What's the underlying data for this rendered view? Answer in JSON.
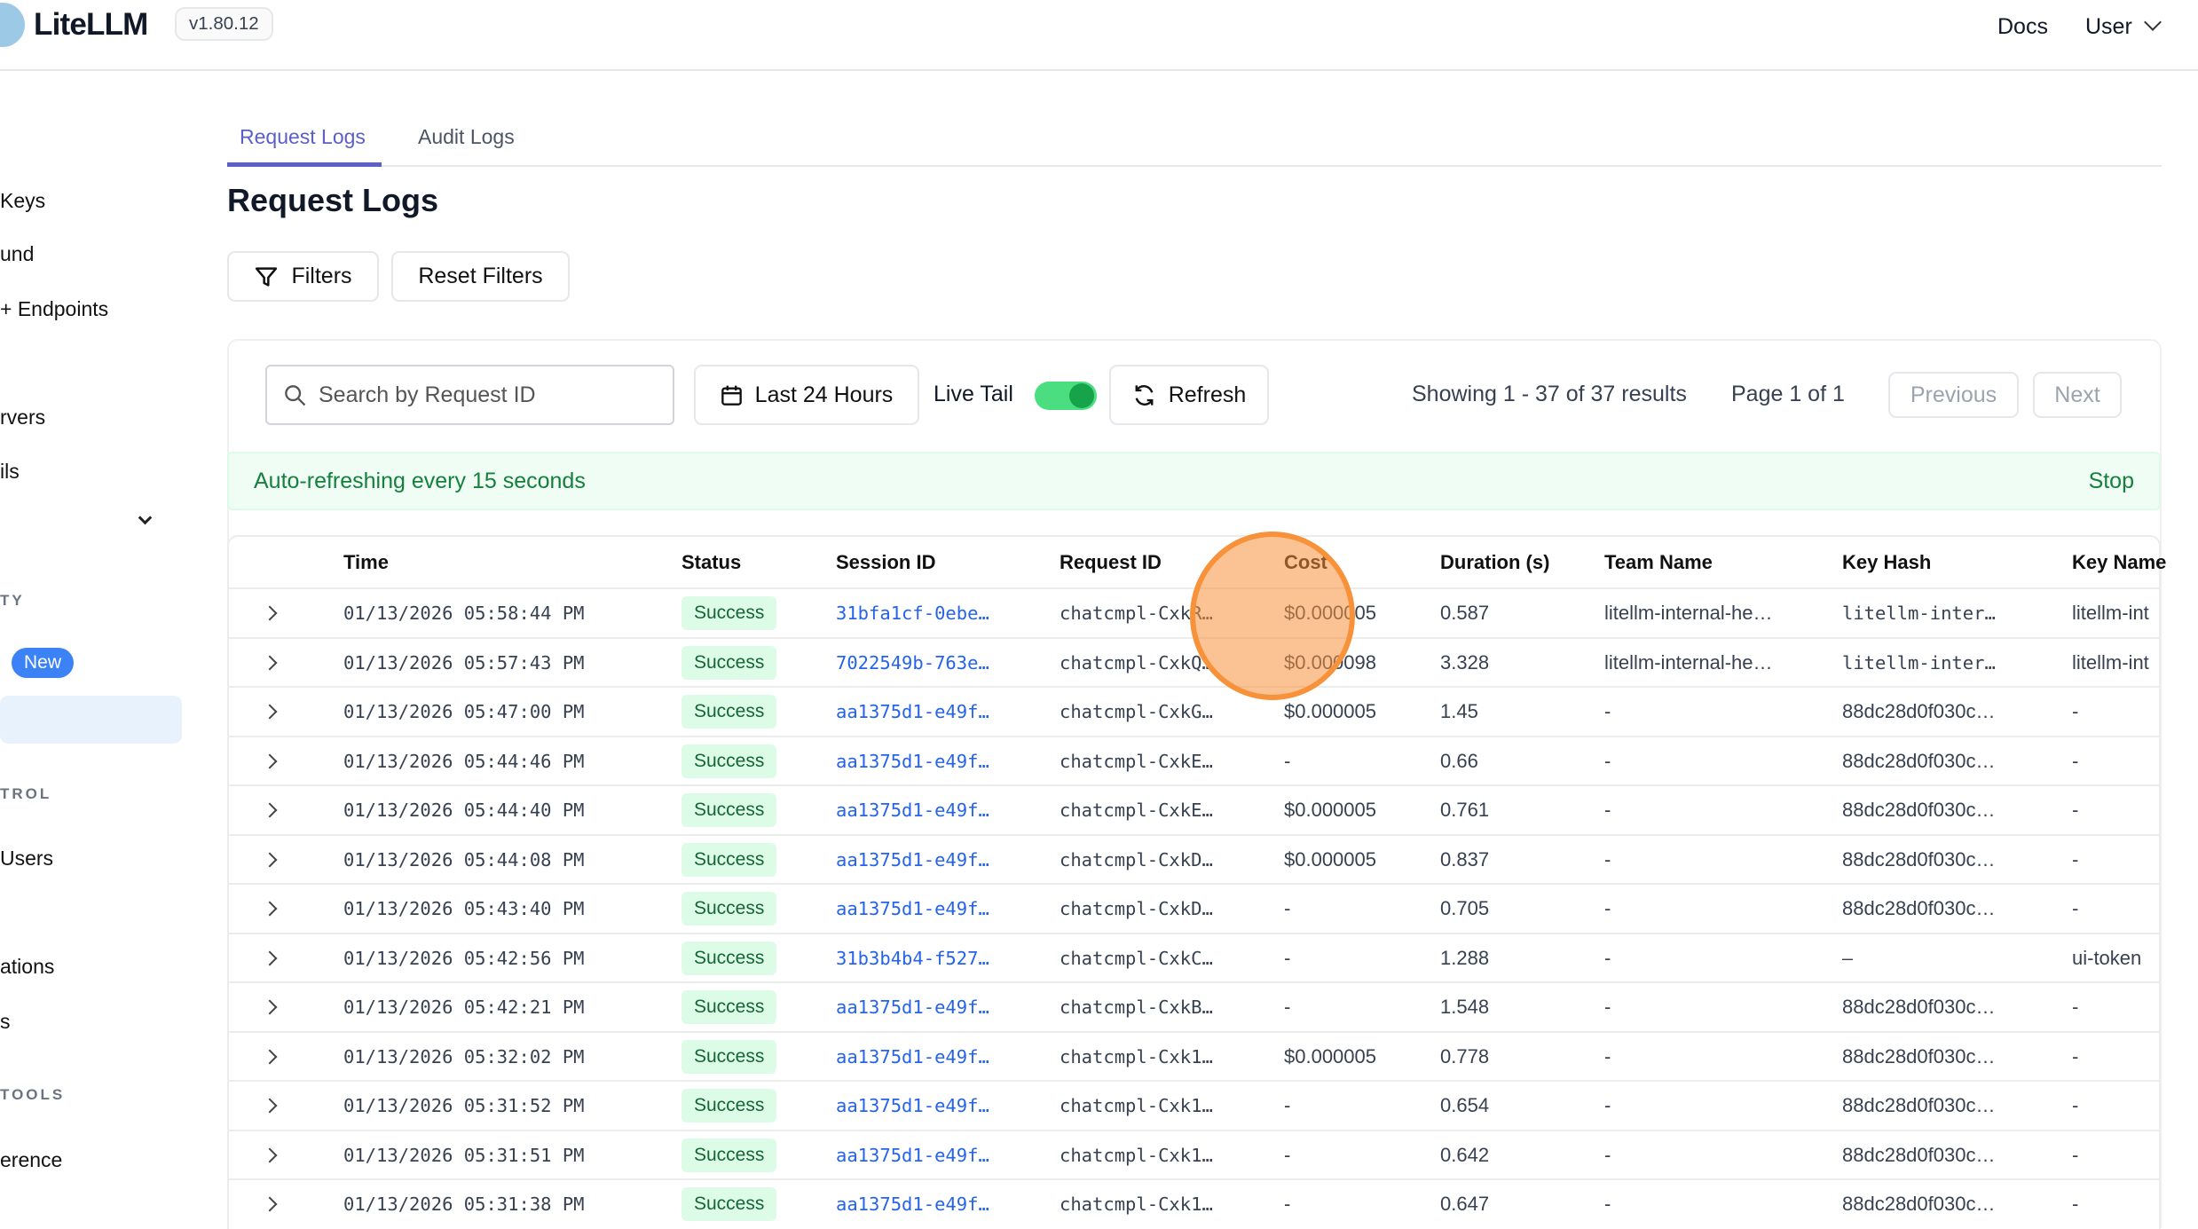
{
  "header": {
    "brand": "LiteLLM",
    "version": "v1.80.12",
    "docs": "Docs",
    "user": "User"
  },
  "sidebar": {
    "items": [
      {
        "label": "Keys"
      },
      {
        "label": "und"
      },
      {
        "label": "+ Endpoints"
      },
      {
        "label": "rvers"
      },
      {
        "label": "ils"
      },
      {
        "label": "Users"
      },
      {
        "label": "ations"
      },
      {
        "label": "s"
      },
      {
        "label": "erence"
      }
    ],
    "sections": [
      "TY",
      "TROL",
      "TOOLS"
    ],
    "new_badge": "New"
  },
  "tabs": [
    {
      "label": "Request Logs",
      "active": true
    },
    {
      "label": "Audit Logs"
    }
  ],
  "page_title": "Request Logs",
  "filters_label": "Filters",
  "reset_filters_label": "Reset Filters",
  "toolbar": {
    "search_placeholder": "Search by Request ID",
    "time_range": "Last 24 Hours",
    "live_tail": "Live Tail",
    "live_tail_on": true,
    "refresh": "Refresh",
    "showing": "Showing 1 - 37 of 37 results",
    "page": "Page 1 of 1",
    "previous": "Previous",
    "next": "Next"
  },
  "banner": {
    "text": "Auto-refreshing every 15 seconds",
    "stop": "Stop"
  },
  "table": {
    "columns": [
      "Time",
      "Status",
      "Session ID",
      "Request ID",
      "Cost",
      "Duration (s)",
      "Team Name",
      "Key Hash",
      "Key Name"
    ],
    "rows": [
      [
        "01/13/2026 05:58:44 PM",
        "Success",
        "31bfa1cf-0ebe…",
        "chatcmpl-CxkR…",
        "$0.000005",
        "0.587",
        "litellm-internal-he…",
        "litellm-inter…",
        "litellm-int"
      ],
      [
        "01/13/2026 05:57:43 PM",
        "Success",
        "7022549b-763e…",
        "chatcmpl-CxkQ…",
        "$0.000098",
        "3.328",
        "litellm-internal-he…",
        "litellm-inter…",
        "litellm-int"
      ],
      [
        "01/13/2026 05:47:00 PM",
        "Success",
        "aa1375d1-e49f…",
        "chatcmpl-CxkG…",
        "$0.000005",
        "1.45",
        "-",
        "88dc28d0f030c…",
        "-"
      ],
      [
        "01/13/2026 05:44:46 PM",
        "Success",
        "aa1375d1-e49f…",
        "chatcmpl-CxkE…",
        "-",
        "0.66",
        "-",
        "88dc28d0f030c…",
        "-"
      ],
      [
        "01/13/2026 05:44:40 PM",
        "Success",
        "aa1375d1-e49f…",
        "chatcmpl-CxkE…",
        "$0.000005",
        "0.761",
        "-",
        "88dc28d0f030c…",
        "-"
      ],
      [
        "01/13/2026 05:44:08 PM",
        "Success",
        "aa1375d1-e49f…",
        "chatcmpl-CxkD…",
        "$0.000005",
        "0.837",
        "-",
        "88dc28d0f030c…",
        "-"
      ],
      [
        "01/13/2026 05:43:40 PM",
        "Success",
        "aa1375d1-e49f…",
        "chatcmpl-CxkD…",
        "-",
        "0.705",
        "-",
        "88dc28d0f030c…",
        "-"
      ],
      [
        "01/13/2026 05:42:56 PM",
        "Success",
        "31b3b4b4-f527…",
        "chatcmpl-CxkC…",
        "-",
        "1.288",
        "-",
        "–",
        "ui-token"
      ],
      [
        "01/13/2026 05:42:21 PM",
        "Success",
        "aa1375d1-e49f…",
        "chatcmpl-CxkB…",
        "-",
        "1.548",
        "-",
        "88dc28d0f030c…",
        "-"
      ],
      [
        "01/13/2026 05:32:02 PM",
        "Success",
        "aa1375d1-e49f…",
        "chatcmpl-Cxk1…",
        "$0.000005",
        "0.778",
        "-",
        "88dc28d0f030c…",
        "-"
      ],
      [
        "01/13/2026 05:31:52 PM",
        "Success",
        "aa1375d1-e49f…",
        "chatcmpl-Cxk1…",
        "-",
        "0.654",
        "-",
        "88dc28d0f030c…",
        "-"
      ],
      [
        "01/13/2026 05:31:51 PM",
        "Success",
        "aa1375d1-e49f…",
        "chatcmpl-Cxk1…",
        "-",
        "0.642",
        "-",
        "88dc28d0f030c…",
        "-"
      ],
      [
        "01/13/2026 05:31:38 PM",
        "Success",
        "aa1375d1-e49f…",
        "chatcmpl-Cxk1…",
        "-",
        "0.647",
        "-",
        "88dc28d0f030c…",
        "-"
      ]
    ]
  },
  "colors": {
    "accent": "#5b5fc7",
    "success_bg": "#dcfce7",
    "success_text": "#166534",
    "link": "#2563eb",
    "toggle": "#22c55e",
    "click_marker": "#f7923a"
  }
}
